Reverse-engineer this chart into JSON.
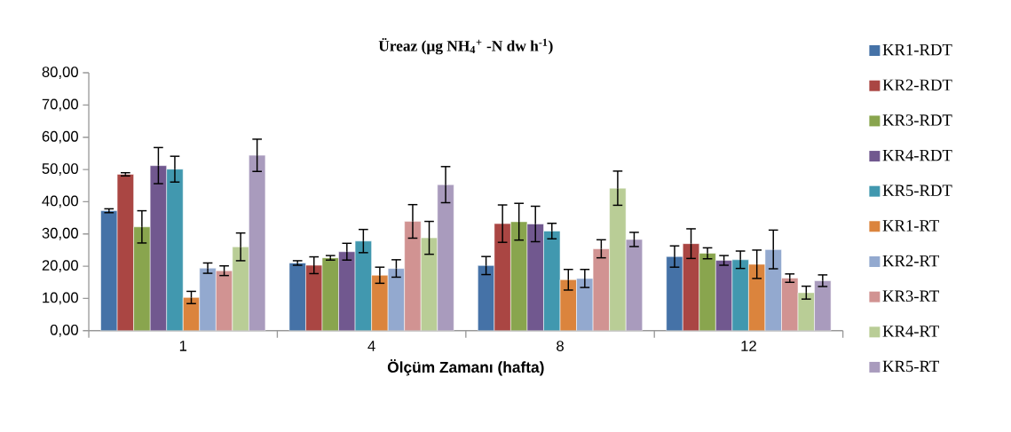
{
  "chart_data": {
    "type": "bar",
    "title": "Üreaz (µg NH$_{4}$$^{+}$ -N dw h$^{-1}$)",
    "xlabel": "Ölçüm Zamanı (hafta)",
    "categories": [
      "1",
      "4",
      "8",
      "12"
    ],
    "series": [
      {
        "name": "KR1-RDT",
        "color": "#4572a7",
        "values": [
          37.2,
          21.0,
          20.2,
          23.0
        ],
        "errors": [
          0.6,
          0.7,
          2.8,
          3.3
        ]
      },
      {
        "name": "KR2-RDT",
        "color": "#aa4643",
        "values": [
          48.5,
          20.3,
          33.2,
          27.0
        ],
        "errors": [
          0.5,
          2.6,
          5.8,
          4.6
        ]
      },
      {
        "name": "KR3-RDT",
        "color": "#89a54e",
        "values": [
          32.2,
          22.6,
          33.8,
          24.0
        ],
        "errors": [
          5.0,
          0.7,
          5.7,
          1.7
        ]
      },
      {
        "name": "KR4-RDT",
        "color": "#71588f",
        "values": [
          51.2,
          24.5,
          33.1,
          21.8
        ],
        "errors": [
          5.6,
          2.6,
          5.5,
          1.5
        ]
      },
      {
        "name": "KR5-RDT",
        "color": "#4198af",
        "values": [
          50.1,
          27.8,
          30.9,
          22.0
        ],
        "errors": [
          4.0,
          3.6,
          2.4,
          2.7
        ]
      },
      {
        "name": "KR1-RT",
        "color": "#db843d",
        "values": [
          10.3,
          17.2,
          15.8,
          20.6
        ],
        "errors": [
          1.9,
          2.5,
          3.2,
          4.4
        ]
      },
      {
        "name": "KR2-RT",
        "color": "#93a9cf",
        "values": [
          19.4,
          19.3,
          16.2,
          25.2
        ],
        "errors": [
          1.6,
          2.7,
          2.8,
          6.0
        ]
      },
      {
        "name": "KR3-RT",
        "color": "#d19392",
        "values": [
          18.6,
          33.9,
          25.4,
          16.3
        ],
        "errors": [
          1.5,
          5.2,
          2.8,
          1.3
        ]
      },
      {
        "name": "KR4-RT",
        "color": "#b9cd96",
        "values": [
          26.0,
          28.8,
          44.2,
          11.8
        ],
        "errors": [
          4.3,
          5.1,
          5.3,
          2.0
        ]
      },
      {
        "name": "KR5-RT",
        "color": "#a99bbd",
        "values": [
          54.4,
          45.3,
          28.3,
          15.5
        ],
        "errors": [
          5.0,
          5.6,
          2.2,
          1.8
        ]
      }
    ],
    "ylim": [
      0,
      80
    ],
    "yticks": [
      {
        "value": 0,
        "label": "0,00"
      },
      {
        "value": 10,
        "label": "10,00"
      },
      {
        "value": 20,
        "label": "20,00"
      },
      {
        "value": 30,
        "label": "30,00"
      },
      {
        "value": 40,
        "label": "40,00"
      },
      {
        "value": 50,
        "label": "50,00"
      },
      {
        "value": 60,
        "label": "60,00"
      },
      {
        "value": 70,
        "label": "70,00"
      },
      {
        "value": 80,
        "label": "80,00"
      }
    ],
    "grid": false,
    "legend": "right"
  }
}
